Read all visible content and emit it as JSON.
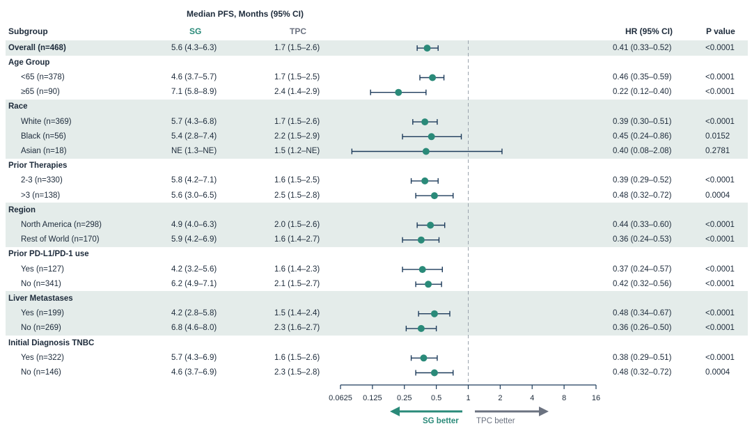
{
  "header": {
    "pfs_title": "Median PFS, Months (95% CI)",
    "subgroup": "Subgroup",
    "sg": "SG",
    "tpc": "TPC",
    "hr": "HR (95% CI)",
    "pvalue": "P value"
  },
  "colors": {
    "sg": "#2a8a79",
    "tpc": "#6b7280",
    "band": "#e4ecea",
    "line": "#1c3a5a",
    "text": "#1c2a3a"
  },
  "rows": [
    {
      "label": "Overall (n=468)",
      "group": true,
      "band": true,
      "sg": "5.6 (4.3–6.3)",
      "tpc": "1.7 (1.5–2.6)",
      "hr": "0.41 (0.33–0.52)",
      "p": "<0.0001"
    },
    {
      "label": "Age Group",
      "group": true,
      "band": false
    },
    {
      "label": "<65 (n=378)",
      "band": false,
      "sg": "4.6 (3.7–5.7)",
      "tpc": "1.7 (1.5–2.5)",
      "hr": "0.46 (0.35–0.59)",
      "p": "<0.0001"
    },
    {
      "label": "≥65 (n=90)",
      "band": false,
      "sg": "7.1 (5.8–8.9)",
      "tpc": "2.4 (1.4–2.9)",
      "hr": "0.22 (0.12–0.40)",
      "p": "<0.0001"
    },
    {
      "label": "Race",
      "group": true,
      "band": true
    },
    {
      "label": "White (n=369)",
      "band": true,
      "sg": "5.7 (4.3–6.8)",
      "tpc": "1.7 (1.5–2.6)",
      "hr": "0.39 (0.30–0.51)",
      "p": "<0.0001"
    },
    {
      "label": "Black (n=56)",
      "band": true,
      "sg": "5.4 (2.8–7.4)",
      "tpc": "2.2 (1.5–2.9)",
      "hr": "0.45 (0.24–0.86)",
      "p": "0.0152"
    },
    {
      "label": "Asian (n=18)",
      "band": true,
      "sg": "NE (1.3–NE)",
      "tpc": "1.5 (1.2–NE)",
      "hr": "0.40 (0.08–2.08)",
      "p": "0.2781"
    },
    {
      "label": "Prior Therapies",
      "group": true,
      "band": false
    },
    {
      "label": "2-3 (n=330)",
      "band": false,
      "sg": "5.8 (4.2–7.1)",
      "tpc": "1.6 (1.5–2.5)",
      "hr": "0.39 (0.29–0.52)",
      "p": "<0.0001"
    },
    {
      "label": ">3 (n=138)",
      "band": false,
      "sg": "5.6 (3.0–6.5)",
      "tpc": "2.5 (1.5–2.8)",
      "hr": "0.48 (0.32–0.72)",
      "p": "0.0004"
    },
    {
      "label": "Region",
      "group": true,
      "band": true
    },
    {
      "label": "North America (n=298)",
      "band": true,
      "sg": "4.9 (4.0–6.3)",
      "tpc": "2.0 (1.5–2.6)",
      "hr": "0.44 (0.33–0.60)",
      "p": "<0.0001"
    },
    {
      "label": "Rest of World (n=170)",
      "band": true,
      "sg": "5.9 (4.2–6.9)",
      "tpc": "1.6 (1.4–2.7)",
      "hr": "0.36 (0.24–0.53)",
      "p": "<0.0001"
    },
    {
      "label": "Prior PD-L1/PD-1 use",
      "group": true,
      "band": false
    },
    {
      "label": "Yes (n=127)",
      "band": false,
      "sg": "4.2 (3.2–5.6)",
      "tpc": "1.6 (1.4–2.3)",
      "hr": "0.37 (0.24–0.57)",
      "p": "<0.0001"
    },
    {
      "label": "No (n=341)",
      "band": false,
      "sg": "6.2 (4.9–7.1)",
      "tpc": "2.1 (1.5–2.7)",
      "hr": "0.42 (0.32–0.56)",
      "p": "<0.0001"
    },
    {
      "label": "Liver Metastases",
      "group": true,
      "band": true
    },
    {
      "label": "Yes (n=199)",
      "band": true,
      "sg": "4.2 (2.8–5.8)",
      "tpc": "1.5 (1.4–2.4)",
      "hr": "0.48 (0.34–0.67)",
      "p": "<0.0001"
    },
    {
      "label": "No (n=269)",
      "band": true,
      "sg": "6.8 (4.6–8.0)",
      "tpc": "2.3 (1.6–2.7)",
      "hr": "0.36 (0.26–0.50)",
      "p": "<0.0001"
    },
    {
      "label": "Initial Diagnosis TNBC",
      "group": true,
      "band": false
    },
    {
      "label": "Yes (n=322)",
      "band": false,
      "sg": "5.7 (4.3–6.9)",
      "tpc": "1.6 (1.5–2.6)",
      "hr": "0.38 (0.29–0.51)",
      "p": "<0.0001"
    },
    {
      "label": "No (n=146)",
      "band": false,
      "sg": "4.6 (3.7–6.9)",
      "tpc": "2.3 (1.5–2.8)",
      "hr": "0.48 (0.32–0.72)",
      "p": "0.0004"
    }
  ],
  "chart_data": {
    "type": "forest",
    "xscale": "log2",
    "xlim": [
      0.0625,
      16
    ],
    "xticks": [
      0.0625,
      0.125,
      0.25,
      0.5,
      1,
      2,
      4,
      8,
      16
    ],
    "xtick_labels": [
      "0.0625",
      "0.125",
      "0.25",
      "0.5",
      "1",
      "2",
      "4",
      "8",
      "16"
    ],
    "reference_line": 1,
    "arrow_left_label": "SG better",
    "arrow_right_label": "TPC better",
    "points": [
      {
        "row": 0,
        "hr": 0.41,
        "lo": 0.33,
        "hi": 0.52
      },
      {
        "row": 2,
        "hr": 0.46,
        "lo": 0.35,
        "hi": 0.59
      },
      {
        "row": 3,
        "hr": 0.22,
        "lo": 0.12,
        "hi": 0.4
      },
      {
        "row": 5,
        "hr": 0.39,
        "lo": 0.3,
        "hi": 0.51
      },
      {
        "row": 6,
        "hr": 0.45,
        "lo": 0.24,
        "hi": 0.86
      },
      {
        "row": 7,
        "hr": 0.4,
        "lo": 0.08,
        "hi": 2.08
      },
      {
        "row": 9,
        "hr": 0.39,
        "lo": 0.29,
        "hi": 0.52
      },
      {
        "row": 10,
        "hr": 0.48,
        "lo": 0.32,
        "hi": 0.72
      },
      {
        "row": 12,
        "hr": 0.44,
        "lo": 0.33,
        "hi": 0.6
      },
      {
        "row": 13,
        "hr": 0.36,
        "lo": 0.24,
        "hi": 0.53
      },
      {
        "row": 15,
        "hr": 0.37,
        "lo": 0.24,
        "hi": 0.57
      },
      {
        "row": 16,
        "hr": 0.42,
        "lo": 0.32,
        "hi": 0.56
      },
      {
        "row": 18,
        "hr": 0.48,
        "lo": 0.34,
        "hi": 0.67
      },
      {
        "row": 19,
        "hr": 0.36,
        "lo": 0.26,
        "hi": 0.5
      },
      {
        "row": 21,
        "hr": 0.38,
        "lo": 0.29,
        "hi": 0.51
      },
      {
        "row": 22,
        "hr": 0.48,
        "lo": 0.32,
        "hi": 0.72
      }
    ]
  }
}
